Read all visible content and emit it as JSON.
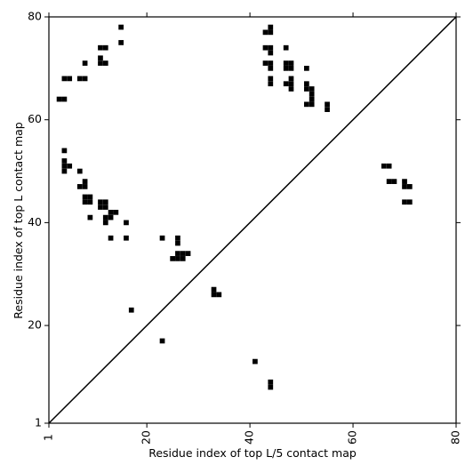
{
  "chart_data": {
    "type": "heatmap",
    "title": "",
    "xlabel": "Residue index of top L/5 contact map",
    "ylabel": "Residue index of top L contact map",
    "xlim": [
      1,
      80
    ],
    "ylim": [
      1,
      80
    ],
    "x_ticks": [
      "1",
      "20",
      "40",
      "60",
      "80"
    ],
    "y_ticks": [
      "1",
      "20",
      "40",
      "60",
      "80"
    ],
    "x_tick_values": [
      1,
      20,
      40,
      60,
      80
    ],
    "y_tick_values": [
      1,
      20,
      40,
      60,
      80
    ],
    "diagonal": [
      [
        1,
        1
      ],
      [
        80,
        80
      ]
    ],
    "colors": {
      "cell": "#000000",
      "axes": "#000000",
      "background": "#ffffff"
    },
    "contacts_upper": [
      [
        15,
        78
      ],
      [
        44,
        78
      ],
      [
        43,
        77
      ],
      [
        44,
        77
      ],
      [
        11,
        74
      ],
      [
        12,
        74
      ],
      [
        15,
        75
      ],
      [
        43,
        74
      ],
      [
        44,
        74
      ],
      [
        47,
        74
      ],
      [
        44,
        73
      ],
      [
        11,
        72
      ],
      [
        8,
        71
      ],
      [
        11,
        71
      ],
      [
        12,
        71
      ],
      [
        43,
        71
      ],
      [
        44,
        71
      ],
      [
        47,
        71
      ],
      [
        48,
        71
      ],
      [
        44,
        70
      ],
      [
        47,
        70
      ],
      [
        48,
        70
      ],
      [
        51,
        70
      ],
      [
        4,
        68
      ],
      [
        5,
        68
      ],
      [
        7,
        68
      ],
      [
        8,
        68
      ],
      [
        44,
        68
      ],
      [
        48,
        68
      ],
      [
        44,
        67
      ],
      [
        47,
        67
      ],
      [
        48,
        67
      ],
      [
        51,
        67
      ],
      [
        48,
        66
      ],
      [
        51,
        66
      ],
      [
        52,
        66
      ],
      [
        52,
        65
      ],
      [
        52,
        64
      ],
      [
        3,
        64
      ],
      [
        4,
        64
      ],
      [
        51,
        63
      ],
      [
        52,
        63
      ],
      [
        55,
        63
      ],
      [
        55,
        62
      ]
    ],
    "contacts_lower": [
      [
        4,
        54
      ],
      [
        4,
        52
      ],
      [
        4,
        51
      ],
      [
        5,
        51
      ],
      [
        4,
        50
      ],
      [
        7,
        50
      ],
      [
        8,
        48
      ],
      [
        7,
        47
      ],
      [
        8,
        47
      ],
      [
        8,
        45
      ],
      [
        9,
        45
      ],
      [
        8,
        44
      ],
      [
        9,
        44
      ],
      [
        11,
        44
      ],
      [
        12,
        44
      ],
      [
        11,
        43
      ],
      [
        12,
        43
      ],
      [
        13,
        42
      ],
      [
        14,
        42
      ],
      [
        12,
        41
      ],
      [
        13,
        41
      ],
      [
        9,
        41
      ],
      [
        12,
        40
      ],
      [
        16,
        40
      ],
      [
        13,
        37
      ],
      [
        16,
        37
      ],
      [
        23,
        37
      ],
      [
        26,
        37
      ],
      [
        26,
        36
      ],
      [
        26,
        34
      ],
      [
        27,
        34
      ],
      [
        28,
        34
      ],
      [
        25,
        33
      ],
      [
        26,
        33
      ],
      [
        27,
        33
      ],
      [
        33,
        27
      ],
      [
        33,
        26
      ],
      [
        34,
        26
      ],
      [
        17,
        23
      ],
      [
        23,
        17
      ],
      [
        41,
        13
      ],
      [
        44,
        9
      ],
      [
        44,
        8
      ]
    ],
    "contacts_mirror": [
      [
        66,
        51
      ],
      [
        67,
        51
      ],
      [
        67,
        48
      ],
      [
        68,
        48
      ],
      [
        70,
        48
      ],
      [
        70,
        47
      ],
      [
        71,
        47
      ],
      [
        70,
        44
      ],
      [
        71,
        44
      ]
    ]
  }
}
